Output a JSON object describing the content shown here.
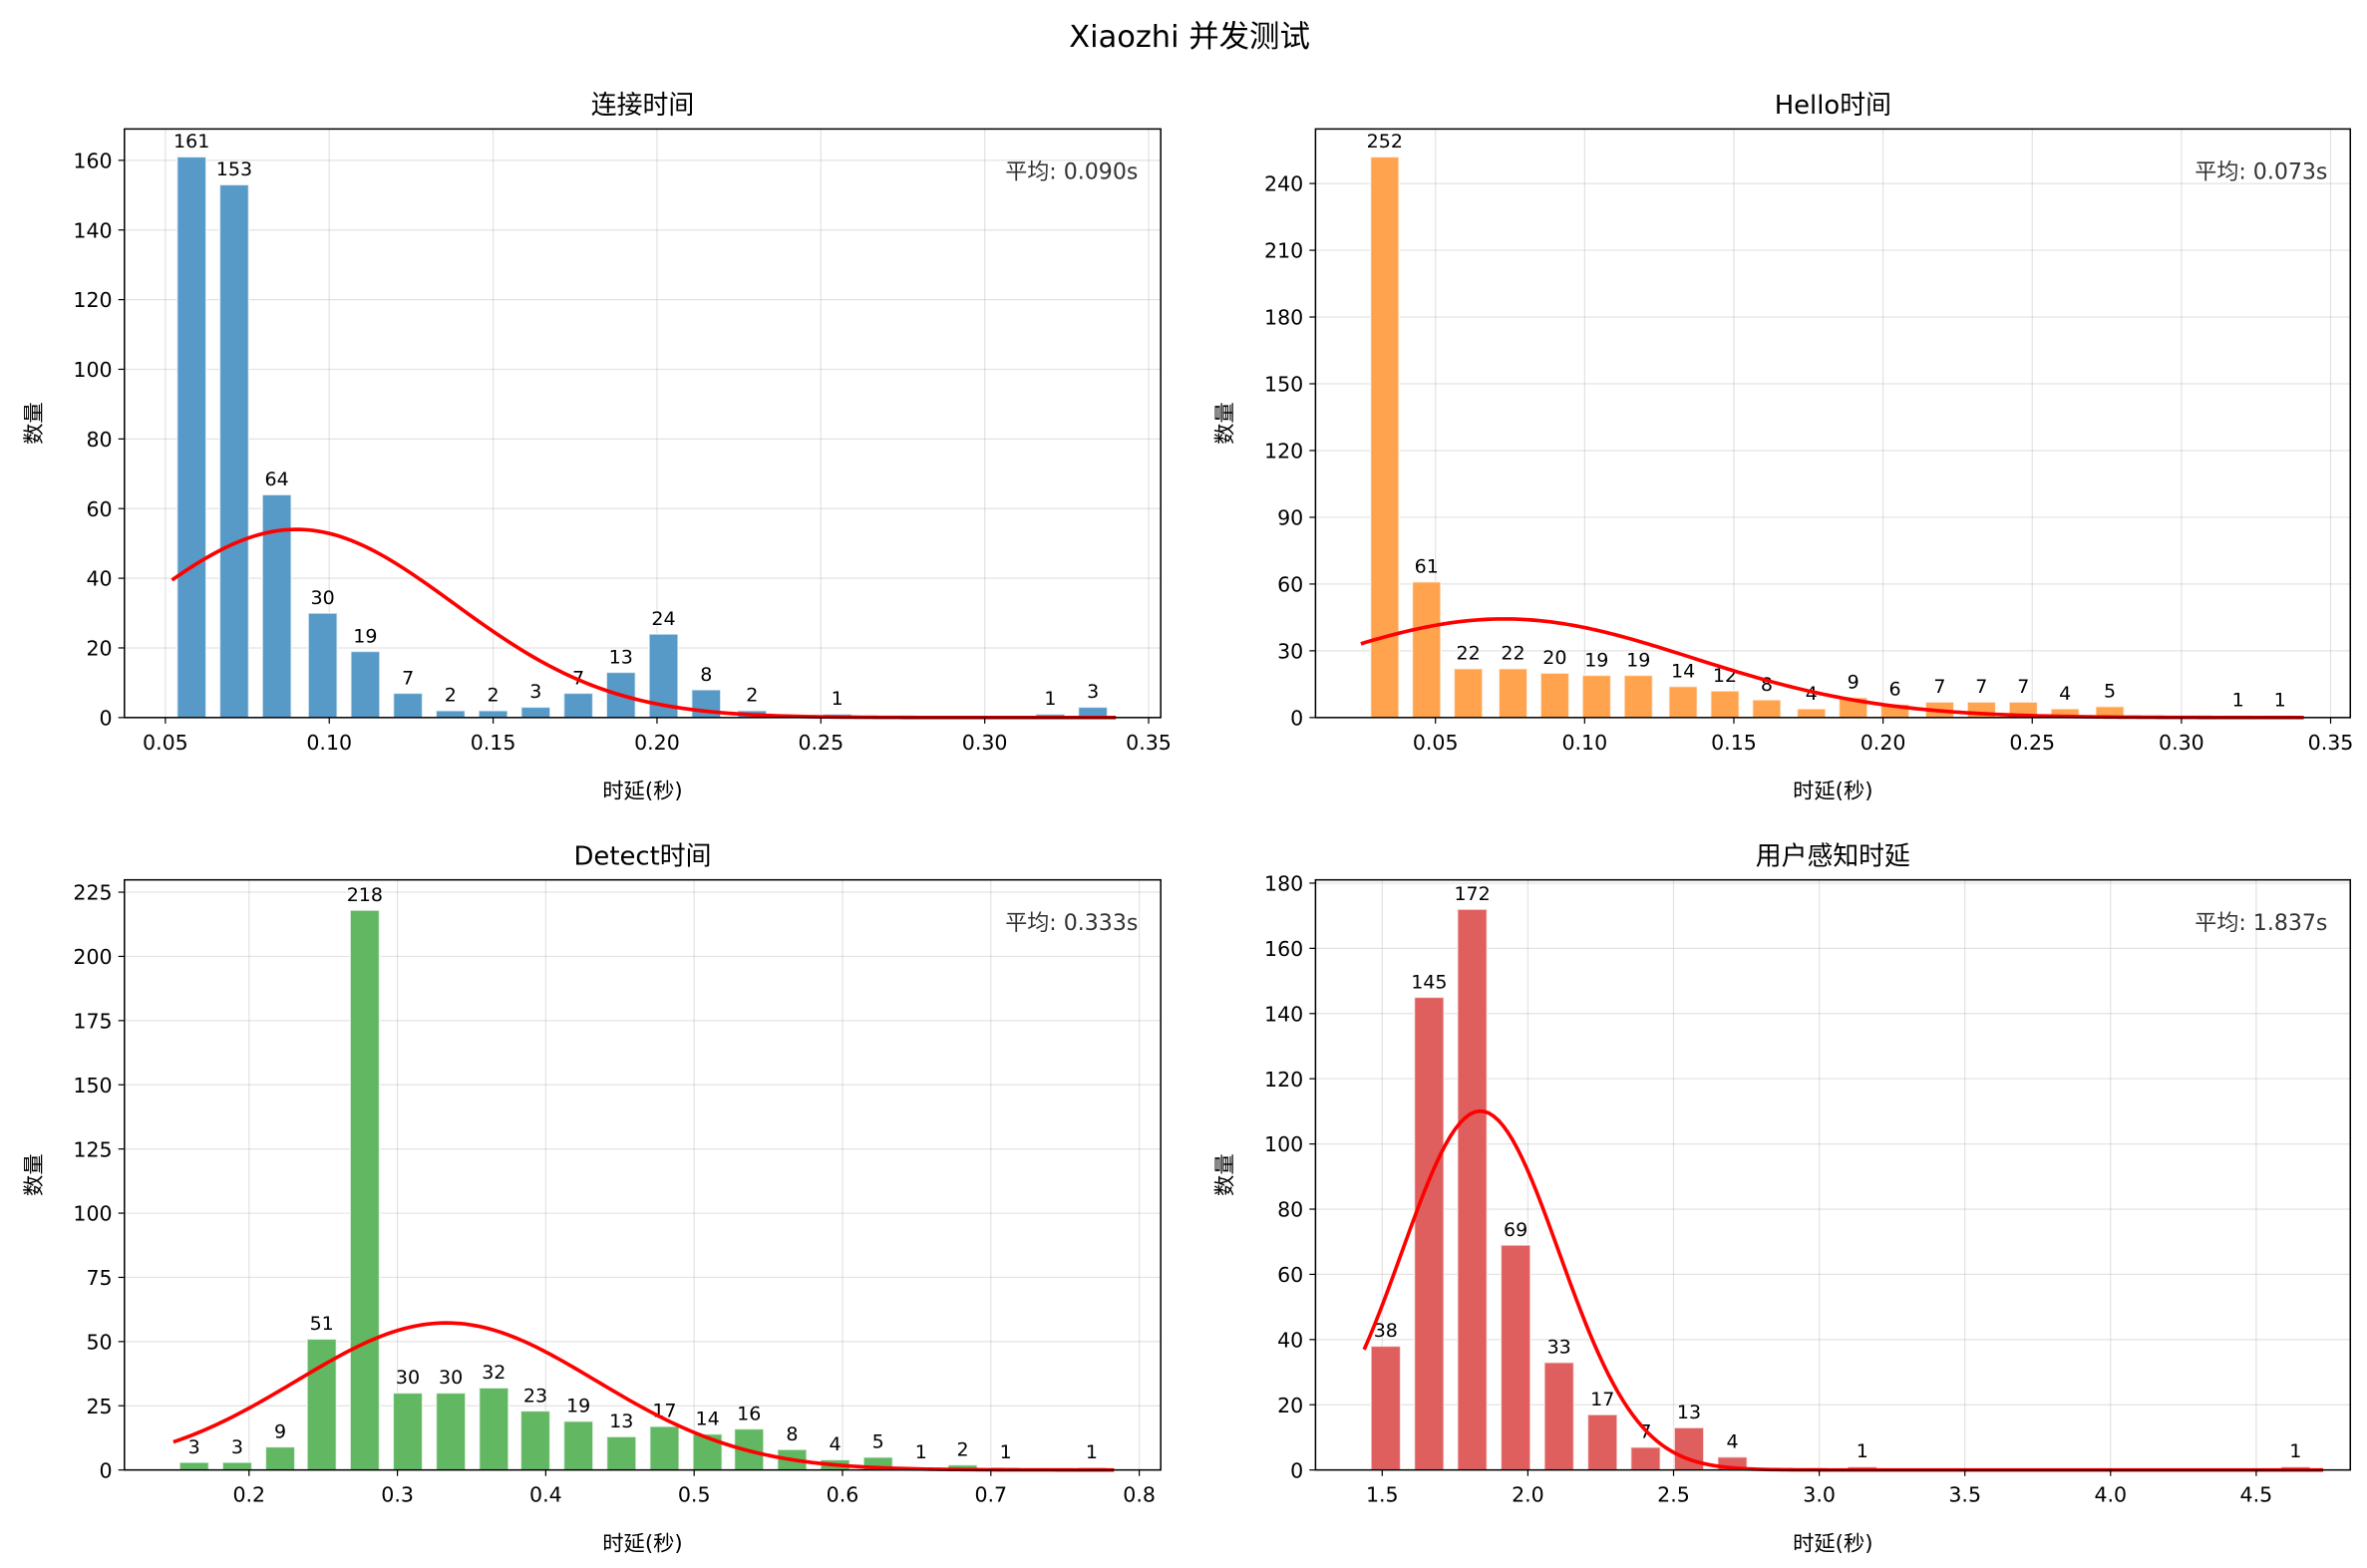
{
  "suptitle": "Xiaozhi 并发测试",
  "chart_data": [
    {
      "type": "bar",
      "title": "连接时间",
      "xlabel": "时延(秒)",
      "ylabel": "数量",
      "annotation": "平均: 0.090s",
      "color": "#5799c7",
      "fit_color": "#ff0000",
      "grid": true,
      "xlim": [
        0.0375,
        0.3537
      ],
      "ylim": [
        0,
        169
      ],
      "xticks": [
        0.05,
        0.1,
        0.15,
        0.2,
        0.25,
        0.3,
        0.35
      ],
      "xtick_labels": [
        "0.05",
        "0.10",
        "0.15",
        "0.20",
        "0.25",
        "0.30",
        "0.35"
      ],
      "yticks": [
        0,
        20,
        40,
        60,
        80,
        100,
        120,
        140,
        160
      ],
      "ytick_labels": [
        "0",
        "20",
        "40",
        "60",
        "80",
        "100",
        "120",
        "140",
        "160"
      ],
      "x": [
        0.058,
        0.071,
        0.084,
        0.098,
        0.111,
        0.124,
        0.137,
        0.15,
        0.163,
        0.176,
        0.189,
        0.202,
        0.215,
        0.229,
        0.242,
        0.255,
        0.268,
        0.281,
        0.294,
        0.307,
        0.32,
        0.333
      ],
      "values": [
        161,
        153,
        64,
        30,
        19,
        7,
        2,
        2,
        3,
        7,
        13,
        24,
        8,
        2,
        0,
        1,
        0,
        0,
        0,
        0,
        1,
        3
      ],
      "fit": {
        "mean": 0.09,
        "std": 0.048,
        "range": [
          0.052,
          0.34
        ]
      }
    },
    {
      "type": "bar",
      "title": "Hello时间",
      "xlabel": "时延(秒)",
      "ylabel": "数量",
      "annotation": "平均: 0.073s",
      "color": "#ffa34f",
      "fit_color": "#ff0000",
      "grid": true,
      "xlim": [
        0.0098,
        0.3566
      ],
      "ylim": [
        0,
        264.5
      ],
      "xticks": [
        0.05,
        0.1,
        0.15,
        0.2,
        0.25,
        0.3,
        0.35
      ],
      "xtick_labels": [
        "0.05",
        "0.10",
        "0.15",
        "0.20",
        "0.25",
        "0.30",
        "0.35"
      ],
      "yticks": [
        0,
        30,
        60,
        90,
        120,
        150,
        180,
        210,
        240
      ],
      "ytick_labels": [
        "0",
        "30",
        "60",
        "90",
        "120",
        "150",
        "180",
        "210",
        "240"
      ],
      "x": [
        0.033,
        0.047,
        0.061,
        0.076,
        0.09,
        0.104,
        0.118,
        0.133,
        0.147,
        0.161,
        0.176,
        0.19,
        0.204,
        0.219,
        0.233,
        0.247,
        0.261,
        0.276,
        0.29,
        0.304,
        0.319,
        0.333
      ],
      "values": [
        252,
        61,
        22,
        22,
        20,
        19,
        19,
        14,
        12,
        8,
        4,
        9,
        6,
        7,
        7,
        7,
        4,
        5,
        0,
        0,
        1,
        1
      ],
      "fit": {
        "mean": 0.073,
        "std": 0.063,
        "range": [
          0.025,
          0.341
        ]
      }
    },
    {
      "type": "bar",
      "title": "Detect时间",
      "xlabel": "时延(秒)",
      "ylabel": "数量",
      "annotation": "平均: 0.333s",
      "color": "#62b762",
      "fit_color": "#ff0000",
      "grid": true,
      "xlim": [
        0.116,
        0.8145
      ],
      "ylim": [
        0,
        229.8
      ],
      "xticks": [
        0.2,
        0.3,
        0.4,
        0.5,
        0.6,
        0.7,
        0.8
      ],
      "xtick_labels": [
        "0.2",
        "0.3",
        "0.4",
        "0.5",
        "0.6",
        "0.7",
        "0.8"
      ],
      "yticks": [
        0,
        25,
        50,
        75,
        100,
        125,
        150,
        175,
        200,
        225
      ],
      "ytick_labels": [
        "0",
        "25",
        "50",
        "75",
        "100",
        "125",
        "150",
        "175",
        "200",
        "225"
      ],
      "x": [
        0.163,
        0.192,
        0.221,
        0.249,
        0.278,
        0.307,
        0.336,
        0.365,
        0.393,
        0.422,
        0.451,
        0.48,
        0.509,
        0.537,
        0.566,
        0.595,
        0.624,
        0.653,
        0.681,
        0.71,
        0.739,
        0.768
      ],
      "values": [
        3,
        3,
        9,
        51,
        218,
        30,
        30,
        32,
        23,
        19,
        13,
        17,
        14,
        16,
        8,
        4,
        5,
        1,
        2,
        1,
        0,
        1
      ],
      "fit": {
        "mean": 0.333,
        "std": 0.101,
        "range": [
          0.149,
          0.783
        ]
      }
    },
    {
      "type": "bar",
      "title": "用户感知时延",
      "xlabel": "时延(秒)",
      "ylabel": "数量",
      "annotation": "平均: 1.837s",
      "color": "#df5f5f",
      "fit_color": "#ff0000",
      "grid": true,
      "xlim": [
        1.271,
        4.823
      ],
      "ylim": [
        0,
        181
      ],
      "xticks": [
        1.5,
        2.0,
        2.5,
        3.0,
        3.5,
        4.0,
        4.5
      ],
      "xtick_labels": [
        "1.5",
        "2.0",
        "2.5",
        "3.0",
        "3.5",
        "4.0",
        "4.5"
      ],
      "yticks": [
        0,
        20,
        40,
        60,
        80,
        100,
        120,
        140,
        160,
        180
      ],
      "ytick_labels": [
        "0",
        "20",
        "40",
        "60",
        "80",
        "100",
        "120",
        "140",
        "160",
        "180"
      ],
      "x": [
        1.512,
        1.661,
        1.809,
        1.958,
        2.107,
        2.256,
        2.404,
        2.553,
        2.702,
        2.85,
        2.999,
        3.148,
        3.296,
        3.445,
        3.594,
        3.743,
        3.891,
        4.04,
        4.189,
        4.337,
        4.486,
        4.635
      ],
      "values": [
        38,
        145,
        172,
        69,
        33,
        17,
        7,
        13,
        4,
        0,
        0,
        1,
        0,
        0,
        0,
        0,
        0,
        0,
        0,
        0,
        0,
        1
      ],
      "fit": {
        "mean": 1.837,
        "std": 0.27,
        "range": [
          1.438,
          4.73
        ]
      }
    }
  ]
}
